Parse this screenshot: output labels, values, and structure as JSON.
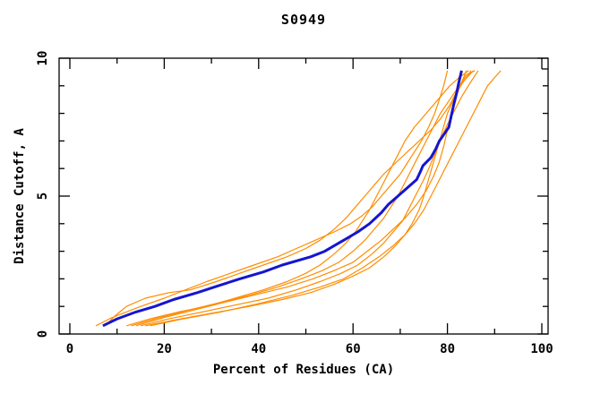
{
  "chart_data": {
    "type": "line",
    "title": "S0949",
    "xlabel": "Percent of Residues (CA)",
    "ylabel": "Distance Cutoff, A",
    "xlim": [
      0,
      100
    ],
    "ylim": [
      0,
      10
    ],
    "grid": false,
    "legend": "none",
    "x_major_ticks": [
      0,
      20,
      40,
      60,
      80,
      100
    ],
    "x_minor_ticks": [
      10,
      30,
      50,
      70,
      90
    ],
    "y_major_ticks": [
      0,
      5,
      10
    ],
    "y_minor_ticks": [
      1,
      2,
      3,
      4,
      6,
      7,
      8,
      9
    ],
    "colors": {
      "model_line": "#1515cf",
      "other_lines": "#ff8c00",
      "axis": "#000000",
      "background": "#ffffff"
    },
    "series": [
      {
        "name": "orange-1",
        "color": "#ff8c00",
        "width": 1.2,
        "points": [
          [
            5.5,
            0.3
          ],
          [
            9,
            0.6
          ],
          [
            15,
            1.0
          ],
          [
            20,
            1.3
          ],
          [
            24.5,
            1.6
          ],
          [
            29,
            1.9
          ],
          [
            34,
            2.2
          ],
          [
            39,
            2.5
          ],
          [
            44,
            2.8
          ],
          [
            48,
            3.1
          ],
          [
            52,
            3.4
          ],
          [
            56,
            3.7
          ],
          [
            59.5,
            4.0
          ],
          [
            62,
            4.3
          ],
          [
            64,
            4.6
          ],
          [
            66,
            5.0
          ],
          [
            68,
            5.4
          ],
          [
            70,
            5.8
          ],
          [
            71.5,
            6.2
          ],
          [
            73,
            6.6
          ],
          [
            74.5,
            7.0
          ],
          [
            76,
            7.5
          ],
          [
            77.3,
            8.0
          ],
          [
            78.3,
            8.5
          ],
          [
            79.2,
            9.0
          ],
          [
            80,
            9.55
          ]
        ]
      },
      {
        "name": "orange-2",
        "color": "#ff8c00",
        "width": 1.2,
        "points": [
          [
            7.5,
            0.3
          ],
          [
            9.5,
            0.65
          ],
          [
            12,
            1.0
          ],
          [
            16,
            1.3
          ],
          [
            21,
            1.5
          ],
          [
            25.5,
            1.6
          ],
          [
            31,
            1.9
          ],
          [
            36,
            2.2
          ],
          [
            41,
            2.5
          ],
          [
            46,
            2.8
          ],
          [
            50,
            3.1
          ],
          [
            53,
            3.4
          ],
          [
            56,
            3.8
          ],
          [
            58.5,
            4.2
          ],
          [
            60.5,
            4.6
          ],
          [
            62.5,
            5.0
          ],
          [
            64.5,
            5.4
          ],
          [
            66.5,
            5.8
          ],
          [
            69,
            6.2
          ],
          [
            71.5,
            6.6
          ],
          [
            74,
            7.0
          ],
          [
            76.5,
            7.4
          ],
          [
            78.5,
            7.8
          ],
          [
            80.5,
            8.3
          ],
          [
            82,
            8.8
          ],
          [
            83.2,
            9.2
          ],
          [
            84,
            9.55
          ]
        ]
      },
      {
        "name": "orange-3",
        "color": "#ff8c00",
        "width": 1.2,
        "points": [
          [
            12,
            0.3
          ],
          [
            17,
            0.55
          ],
          [
            23,
            0.8
          ],
          [
            29,
            1.0
          ],
          [
            35,
            1.3
          ],
          [
            41,
            1.6
          ],
          [
            46,
            1.9
          ],
          [
            50,
            2.2
          ],
          [
            53,
            2.5
          ],
          [
            56,
            2.9
          ],
          [
            58.5,
            3.3
          ],
          [
            60.5,
            3.7
          ],
          [
            62,
            4.1
          ],
          [
            63.5,
            4.5
          ],
          [
            65,
            5.0
          ],
          [
            66.5,
            5.5
          ],
          [
            68,
            6.0
          ],
          [
            69.5,
            6.5
          ],
          [
            71,
            7.0
          ],
          [
            73,
            7.5
          ],
          [
            75.5,
            8.0
          ],
          [
            78,
            8.5
          ],
          [
            80.5,
            9.0
          ],
          [
            82.5,
            9.3
          ],
          [
            84.5,
            9.55
          ]
        ]
      },
      {
        "name": "orange-4",
        "color": "#ff8c00",
        "width": 1.2,
        "points": [
          [
            13,
            0.3
          ],
          [
            19,
            0.6
          ],
          [
            26,
            0.9
          ],
          [
            32,
            1.15
          ],
          [
            38,
            1.4
          ],
          [
            44,
            1.7
          ],
          [
            49,
            2.0
          ],
          [
            53.5,
            2.3
          ],
          [
            57,
            2.6
          ],
          [
            60,
            3.0
          ],
          [
            62.5,
            3.4
          ],
          [
            64.5,
            3.8
          ],
          [
            66.5,
            4.2
          ],
          [
            68,
            4.6
          ],
          [
            69.5,
            5.0
          ],
          [
            71,
            5.5
          ],
          [
            72.5,
            6.0
          ],
          [
            74,
            6.5
          ],
          [
            75.5,
            7.0
          ],
          [
            77,
            7.5
          ],
          [
            78.5,
            8.0
          ],
          [
            80.5,
            8.5
          ],
          [
            82.5,
            9.0
          ],
          [
            85.5,
            9.55
          ]
        ]
      },
      {
        "name": "orange-5",
        "color": "#ff8c00",
        "width": 1.2,
        "points": [
          [
            15,
            0.3
          ],
          [
            21,
            0.55
          ],
          [
            28,
            0.8
          ],
          [
            35,
            1.05
          ],
          [
            42,
            1.3
          ],
          [
            48,
            1.6
          ],
          [
            53,
            1.9
          ],
          [
            57.5,
            2.2
          ],
          [
            61,
            2.5
          ],
          [
            64,
            2.9
          ],
          [
            66.5,
            3.3
          ],
          [
            68.5,
            3.7
          ],
          [
            70.5,
            4.1
          ],
          [
            72,
            4.6
          ],
          [
            73.5,
            5.1
          ],
          [
            75,
            5.6
          ],
          [
            76.3,
            6.1
          ],
          [
            77.5,
            6.6
          ],
          [
            78.7,
            7.1
          ],
          [
            80,
            7.6
          ],
          [
            81.5,
            8.1
          ],
          [
            83,
            8.6
          ],
          [
            84.8,
            9.1
          ],
          [
            86.5,
            9.55
          ]
        ]
      },
      {
        "name": "orange-6",
        "color": "#ff8c00",
        "width": 1.2,
        "points": [
          [
            16,
            0.3
          ],
          [
            22,
            0.5
          ],
          [
            30,
            0.75
          ],
          [
            38,
            1.0
          ],
          [
            45,
            1.25
          ],
          [
            51,
            1.5
          ],
          [
            56,
            1.8
          ],
          [
            60,
            2.1
          ],
          [
            63.5,
            2.4
          ],
          [
            66.5,
            2.8
          ],
          [
            69,
            3.2
          ],
          [
            71,
            3.6
          ],
          [
            72.5,
            4.0
          ],
          [
            74,
            4.5
          ],
          [
            75,
            5.0
          ],
          [
            76,
            5.6
          ],
          [
            77,
            6.2
          ],
          [
            78,
            6.8
          ],
          [
            79,
            7.4
          ],
          [
            80,
            8.0
          ],
          [
            81.3,
            8.5
          ],
          [
            82.8,
            9.0
          ],
          [
            84,
            9.3
          ],
          [
            85,
            9.55
          ]
        ]
      },
      {
        "name": "orange-7",
        "color": "#ff8c00",
        "width": 1.2,
        "points": [
          [
            14,
            0.3
          ],
          [
            20,
            0.6
          ],
          [
            27,
            0.9
          ],
          [
            34,
            1.2
          ],
          [
            40,
            1.45
          ],
          [
            46,
            1.7
          ],
          [
            51.5,
            2.0
          ],
          [
            56,
            2.3
          ],
          [
            60,
            2.6
          ],
          [
            63,
            3.0
          ],
          [
            66,
            3.4
          ],
          [
            68.5,
            3.8
          ],
          [
            71,
            4.2
          ],
          [
            73.5,
            4.7
          ],
          [
            75.5,
            5.2
          ],
          [
            77,
            5.7
          ],
          [
            78.2,
            6.2
          ],
          [
            79.2,
            6.8
          ],
          [
            80,
            7.4
          ],
          [
            80.8,
            8.0
          ],
          [
            81.8,
            8.6
          ],
          [
            83,
            9.1
          ],
          [
            84,
            9.4
          ],
          [
            85.8,
            9.55
          ]
        ]
      },
      {
        "name": "orange-8",
        "color": "#ff8c00",
        "width": 1.2,
        "points": [
          [
            17,
            0.3
          ],
          [
            24,
            0.55
          ],
          [
            32,
            0.8
          ],
          [
            40,
            1.1
          ],
          [
            47,
            1.4
          ],
          [
            53,
            1.7
          ],
          [
            58,
            2.0
          ],
          [
            62,
            2.4
          ],
          [
            65.5,
            2.8
          ],
          [
            68.5,
            3.2
          ],
          [
            71,
            3.6
          ],
          [
            73,
            4.0
          ],
          [
            75,
            4.5
          ],
          [
            76.5,
            5.0
          ],
          [
            78,
            5.5
          ],
          [
            79.5,
            6.0
          ],
          [
            81,
            6.5
          ],
          [
            82.5,
            7.0
          ],
          [
            84,
            7.5
          ],
          [
            85.5,
            8.0
          ],
          [
            87,
            8.5
          ],
          [
            88.5,
            9.0
          ],
          [
            90,
            9.3
          ],
          [
            91.3,
            9.55
          ]
        ]
      },
      {
        "name": "model-navy",
        "color": "#1515cf",
        "width": 3,
        "points": [
          [
            7,
            0.3
          ],
          [
            10,
            0.55
          ],
          [
            14,
            0.8
          ],
          [
            18,
            1.0
          ],
          [
            22,
            1.25
          ],
          [
            27,
            1.5
          ],
          [
            31.5,
            1.75
          ],
          [
            36,
            2.0
          ],
          [
            41,
            2.25
          ],
          [
            45,
            2.5
          ],
          [
            51,
            2.8
          ],
          [
            54,
            3.0
          ],
          [
            58,
            3.4
          ],
          [
            61,
            3.7
          ],
          [
            63.5,
            4.0
          ],
          [
            66,
            4.4
          ],
          [
            67.5,
            4.7
          ],
          [
            69.5,
            5.0
          ],
          [
            71.5,
            5.3
          ],
          [
            73.5,
            5.6
          ],
          [
            74.3,
            5.9
          ],
          [
            74.8,
            6.1
          ],
          [
            76.5,
            6.4
          ],
          [
            77.5,
            6.7
          ],
          [
            78.3,
            7.0
          ],
          [
            79.5,
            7.3
          ],
          [
            80.3,
            7.5
          ],
          [
            80.8,
            7.9
          ],
          [
            81.3,
            8.3
          ],
          [
            81.9,
            8.7
          ],
          [
            82.4,
            9.1
          ],
          [
            83,
            9.55
          ]
        ]
      }
    ]
  }
}
